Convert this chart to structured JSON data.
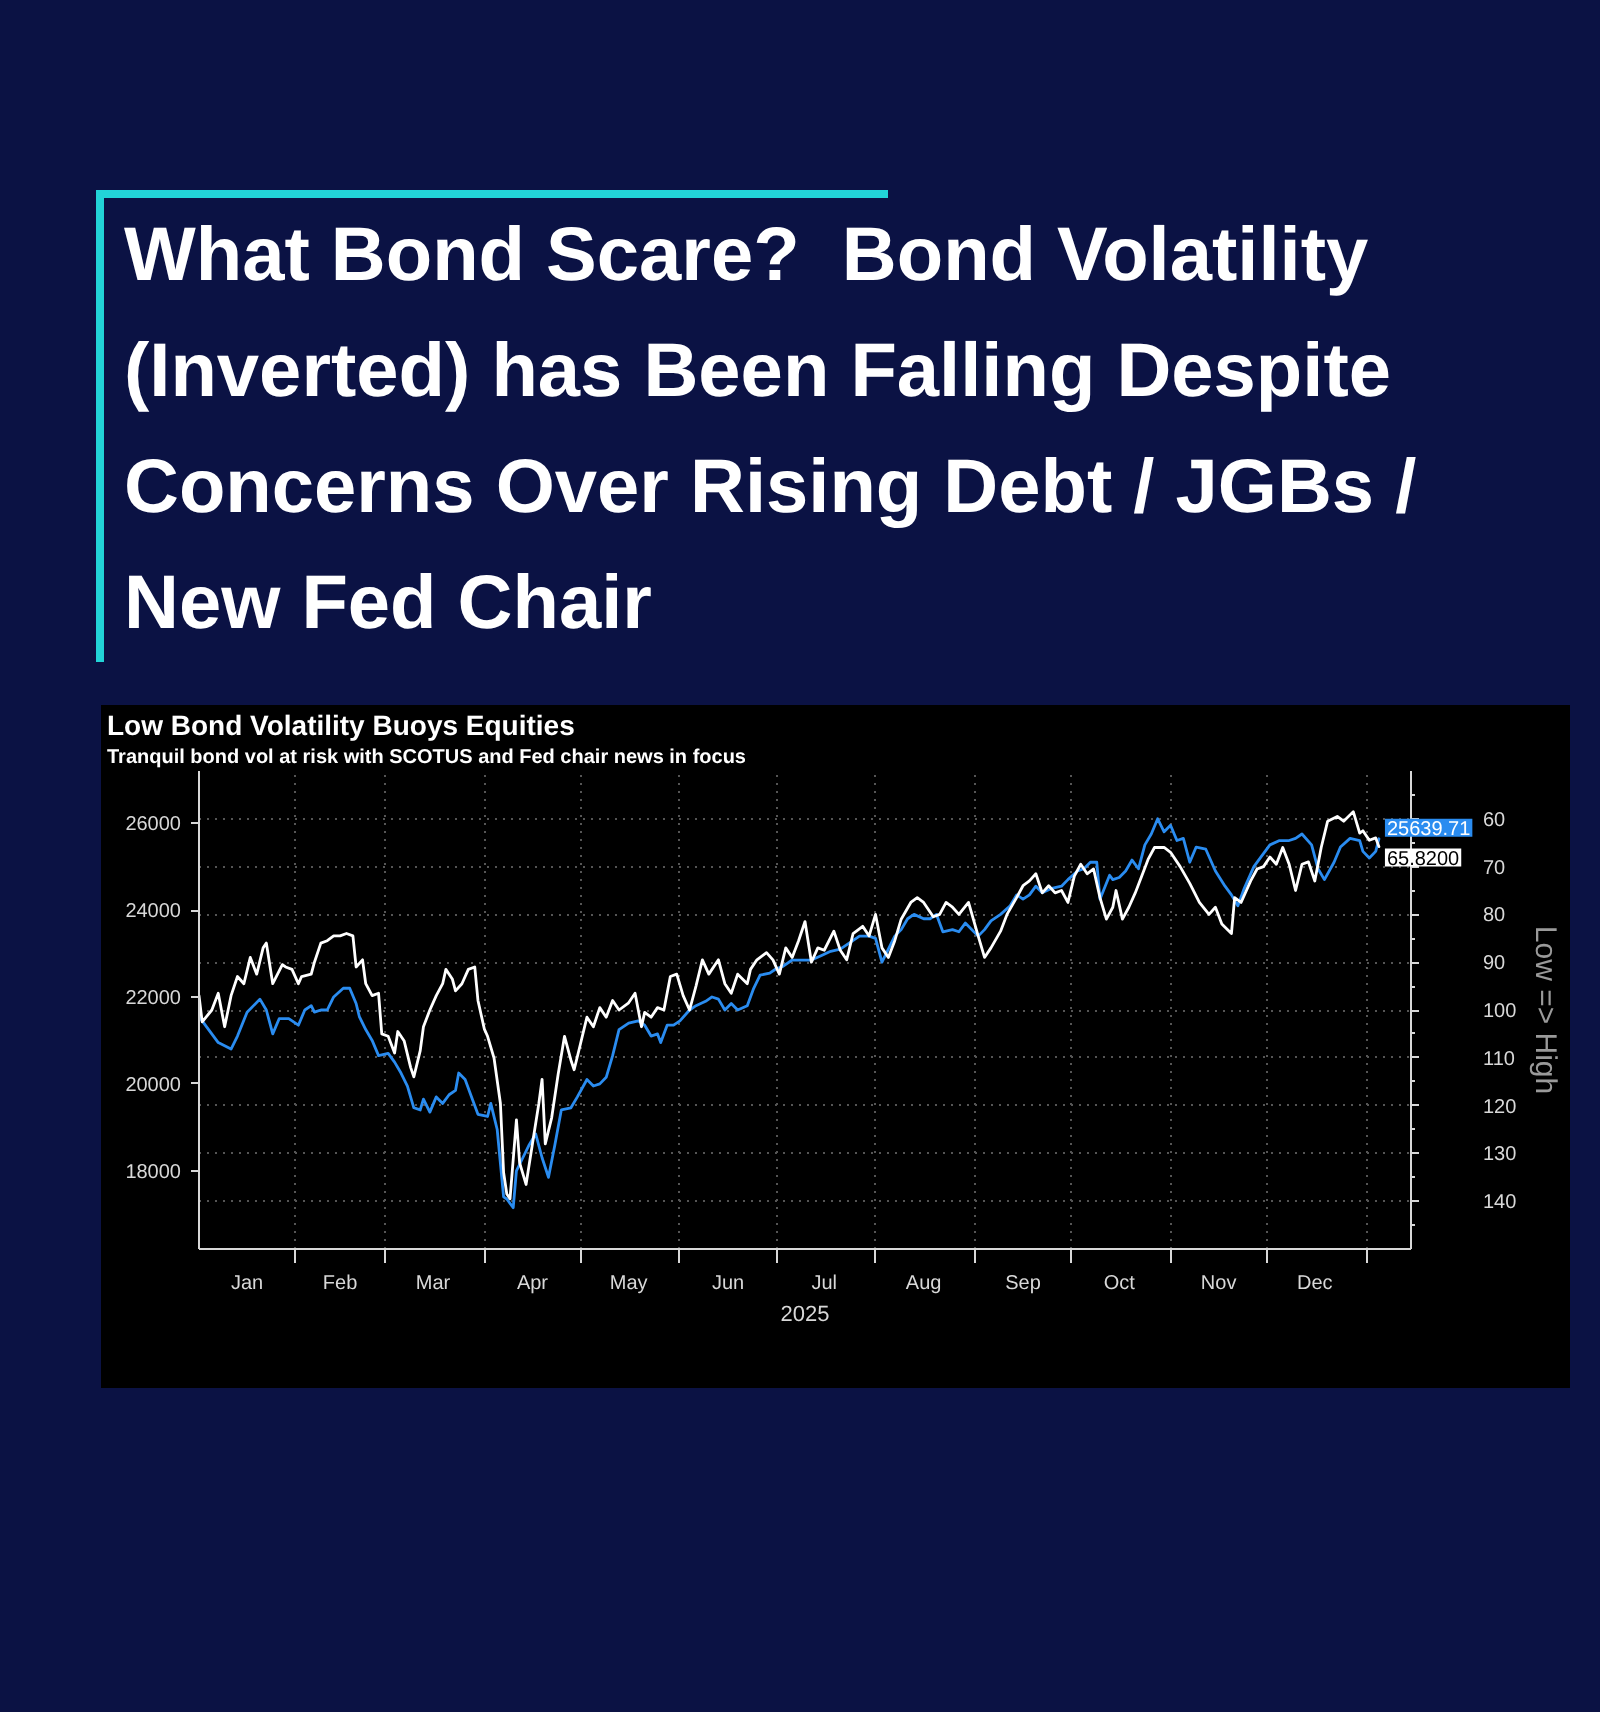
{
  "chart_data": {
    "type": "line",
    "title": "What Bond Scare?  Bond Volatility (Inverted) has Been Falling Despite Concerns Over Rising Debt / JGBs / New Fed Chair",
    "subtitle": "Low Bond Volatility Buoys Equities",
    "annotations": [
      "Tranquil bond vol at risk with SCOTUS and Fed chair news in focus"
    ],
    "xlabel": "2025",
    "y2label": "Low => High",
    "xlim": [
      "2025-01-02",
      "2026-01-15"
    ],
    "ylim": [
      16200,
      27200
    ],
    "y2lim": [
      150,
      50
    ],
    "xticks": [
      {
        "value": "2025-01-17",
        "label": "Jan"
      },
      {
        "value": "2025-02-01",
        "label": null
      },
      {
        "value": "2025-02-15",
        "label": "Feb"
      },
      {
        "value": "2025-03-01",
        "label": null
      },
      {
        "value": "2025-03-16",
        "label": "Mar"
      },
      {
        "value": "2025-04-01",
        "label": null
      },
      {
        "value": "2025-04-16",
        "label": "Apr"
      },
      {
        "value": "2025-05-01",
        "label": null
      },
      {
        "value": "2025-05-16",
        "label": "May"
      },
      {
        "value": "2025-06-01",
        "label": null
      },
      {
        "value": "2025-06-16",
        "label": "Jun"
      },
      {
        "value": "2025-07-01",
        "label": null
      },
      {
        "value": "2025-07-16",
        "label": "Jul"
      },
      {
        "value": "2025-08-01",
        "label": null
      },
      {
        "value": "2025-08-16",
        "label": "Aug"
      },
      {
        "value": "2025-09-01",
        "label": null
      },
      {
        "value": "2025-09-16",
        "label": "Sep"
      },
      {
        "value": "2025-10-01",
        "label": null
      },
      {
        "value": "2025-10-16",
        "label": "Oct"
      },
      {
        "value": "2025-11-01",
        "label": null
      },
      {
        "value": "2025-11-16",
        "label": "Nov"
      },
      {
        "value": "2025-12-01",
        "label": null
      },
      {
        "value": "2025-12-16",
        "label": "Dec"
      },
      {
        "value": "2026-01-01",
        "label": null
      }
    ],
    "yticks": [
      18000,
      20000,
      22000,
      24000,
      26000
    ],
    "y2ticks": [
      {
        "value": 55,
        "label": null
      },
      60,
      {
        "value": 65,
        "label": null
      },
      70,
      {
        "value": 75,
        "label": null
      },
      80,
      {
        "value": 85,
        "label": null
      },
      90,
      {
        "value": 95,
        "label": null
      },
      100,
      {
        "value": 105,
        "label": null
      },
      110,
      {
        "value": 115,
        "label": null
      },
      120,
      {
        "value": 125,
        "label": null
      },
      130,
      {
        "value": 135,
        "label": null
      },
      140,
      {
        "value": 145,
        "label": null
      }
    ],
    "grid": true,
    "series": [
      {
        "color": "#2a8cf0",
        "x": [
          "2025-01-02",
          "2025-01-05",
          "2025-01-08",
          "2025-01-12",
          "2025-01-14",
          "2025-01-17",
          "2025-01-21",
          "2025-01-23",
          "2025-01-25",
          "2025-01-27",
          "2025-01-30",
          "2025-02-02",
          "2025-02-04",
          "2025-02-06",
          "2025-02-07",
          "2025-02-09",
          "2025-02-11",
          "2025-02-13",
          "2025-02-16",
          "2025-02-18",
          "2025-02-20",
          "2025-02-21",
          "2025-02-23",
          "2025-02-25",
          "2025-02-27",
          "2025-03-02",
          "2025-03-04",
          "2025-03-06",
          "2025-03-08",
          "2025-03-10",
          "2025-03-12",
          "2025-03-13",
          "2025-03-15",
          "2025-03-17",
          "2025-03-19",
          "2025-03-21",
          "2025-03-23",
          "2025-03-24",
          "2025-03-26",
          "2025-03-28",
          "2025-03-30",
          "2025-04-02",
          "2025-04-03",
          "2025-04-05",
          "2025-04-07",
          "2025-04-08",
          "2025-04-10",
          "2025-04-11",
          "2025-04-13",
          "2025-04-15",
          "2025-04-17",
          "2025-04-19",
          "2025-04-21",
          "2025-04-23",
          "2025-04-25",
          "2025-04-28",
          "2025-04-30",
          "2025-05-03",
          "2025-05-05",
          "2025-05-07",
          "2025-05-09",
          "2025-05-11",
          "2025-05-13",
          "2025-05-16",
          "2025-05-19",
          "2025-05-21",
          "2025-05-23",
          "2025-05-25",
          "2025-05-26",
          "2025-05-28",
          "2025-05-30",
          "2025-06-01",
          "2025-06-04",
          "2025-06-06",
          "2025-06-09",
          "2025-06-11",
          "2025-06-13",
          "2025-06-15",
          "2025-06-17",
          "2025-06-19",
          "2025-06-22",
          "2025-06-24",
          "2025-06-26",
          "2025-06-29",
          "2025-07-01",
          "2025-07-03",
          "2025-07-06",
          "2025-07-09",
          "2025-07-12",
          "2025-07-15",
          "2025-07-18",
          "2025-07-21",
          "2025-07-24",
          "2025-07-27",
          "2025-07-30",
          "2025-08-01",
          "2025-08-03",
          "2025-08-05",
          "2025-08-07",
          "2025-08-09",
          "2025-08-11",
          "2025-08-13",
          "2025-08-16",
          "2025-08-18",
          "2025-08-20",
          "2025-08-22",
          "2025-08-25",
          "2025-08-27",
          "2025-08-29",
          "2025-09-02",
          "2025-09-04",
          "2025-09-06",
          "2025-09-09",
          "2025-09-12",
          "2025-09-14",
          "2025-09-16",
          "2025-09-18",
          "2025-09-20",
          "2025-09-22",
          "2025-09-25",
          "2025-09-28",
          "2025-09-30",
          "2025-10-03",
          "2025-10-05",
          "2025-10-07",
          "2025-10-09",
          "2025-10-10",
          "2025-10-13",
          "2025-10-14",
          "2025-10-16",
          "2025-10-18",
          "2025-10-20",
          "2025-10-22",
          "2025-10-24",
          "2025-10-26",
          "2025-10-28",
          "2025-10-30",
          "2025-11-01",
          "2025-11-03",
          "2025-11-05",
          "2025-11-07",
          "2025-11-09",
          "2025-11-12",
          "2025-11-15",
          "2025-11-18",
          "2025-11-20",
          "2025-11-22",
          "2025-11-24",
          "2025-11-27",
          "2025-11-29",
          "2025-12-02",
          "2025-12-05",
          "2025-12-08",
          "2025-12-10",
          "2025-12-12",
          "2025-12-15",
          "2025-12-17",
          "2025-12-19",
          "2025-12-22",
          "2025-12-24",
          "2025-12-27",
          "2025-12-30",
          "2025-12-31",
          "2026-01-02",
          "2026-01-04",
          "2026-01-05"
        ],
        "values": [
          21550,
          21250,
          20950,
          20800,
          21100,
          21650,
          21950,
          21700,
          21150,
          21500,
          21500,
          21350,
          21700,
          21800,
          21650,
          21700,
          21700,
          22000,
          22200,
          22200,
          21850,
          21550,
          21250,
          21000,
          20650,
          20700,
          20500,
          20250,
          19950,
          19450,
          19400,
          19650,
          19350,
          19700,
          19550,
          19750,
          19850,
          20250,
          20100,
          19700,
          19300,
          19250,
          19550,
          18950,
          17400,
          17350,
          17150,
          18000,
          18300,
          18600,
          18850,
          18300,
          17850,
          18600,
          19400,
          19450,
          19700,
          20100,
          19950,
          20000,
          20150,
          20650,
          21250,
          21400,
          21450,
          21350,
          21100,
          21150,
          20950,
          21350,
          21350,
          21450,
          21700,
          21800,
          21900,
          22000,
          21950,
          21700,
          21850,
          21700,
          21800,
          22200,
          22500,
          22550,
          22650,
          22700,
          22850,
          22850,
          22850,
          22950,
          23050,
          23100,
          23250,
          23400,
          23400,
          23350,
          22800,
          23100,
          23400,
          23550,
          23800,
          23900,
          23800,
          23800,
          23900,
          23500,
          23550,
          23500,
          23700,
          23400,
          23550,
          23750,
          23900,
          24100,
          24350,
          24250,
          24350,
          24550,
          24400,
          24500,
          24550,
          24700,
          24900,
          24950,
          25100,
          25100,
          24250,
          24800,
          24700,
          24750,
          24900,
          25150,
          24950,
          25500,
          25750,
          26100,
          25800,
          25950,
          25600,
          25650,
          25100,
          25450,
          25400,
          24900,
          24550,
          24350,
          24100,
          24500,
          25000,
          25200,
          25500,
          25600,
          25600,
          25650,
          25750,
          25500,
          24950,
          24700,
          25100,
          25450,
          25650,
          25600,
          25350,
          25200,
          25350,
          25639.71
        ],
        "value_labels": [
          null,
          null,
          null,
          null,
          null,
          null,
          null,
          null,
          null,
          null,
          null,
          null,
          null,
          null,
          null,
          null,
          null,
          null,
          null,
          null,
          null,
          null,
          null,
          null,
          null,
          null,
          null,
          null,
          null,
          null,
          null,
          null,
          null,
          null,
          null,
          null,
          null,
          null,
          null,
          null,
          null,
          null,
          null,
          null,
          null,
          null,
          null,
          null,
          null,
          null,
          null,
          null,
          null,
          null,
          null,
          null,
          null,
          null,
          null,
          null,
          null,
          null,
          null,
          null,
          null,
          null,
          null,
          null,
          null,
          null,
          null,
          null,
          null,
          null,
          null,
          null,
          null,
          null,
          null,
          null,
          null,
          null,
          null,
          null,
          null,
          null,
          null,
          null,
          null,
          null,
          null,
          null,
          null,
          null,
          null,
          null,
          null,
          null,
          null,
          null,
          null,
          null,
          null,
          null,
          null,
          null,
          null,
          null,
          null,
          null,
          null,
          null,
          null,
          null,
          null,
          null,
          null,
          null,
          null,
          null,
          null,
          null,
          null,
          null,
          null,
          null,
          null,
          null,
          null,
          null,
          null,
          null,
          null,
          null,
          null,
          null,
          null,
          null,
          null,
          null,
          null,
          null,
          null,
          null,
          null,
          null,
          null,
          null,
          null,
          null,
          null,
          null,
          null,
          null,
          null,
          null,
          null,
          null,
          null,
          null,
          null,
          null,
          null,
          null,
          null,
          "25639.71"
        ]
      },
      {
        "color": "#ffffff",
        "axis": "y2",
        "x": [
          "2025-01-02",
          "2025-01-03",
          "2025-01-06",
          "2025-01-08",
          "2025-01-10",
          "2025-01-12",
          "2025-01-14",
          "2025-01-16",
          "2025-01-18",
          "2025-01-20",
          "2025-01-22",
          "2025-01-23",
          "2025-01-25",
          "2025-01-28",
          "2025-01-29",
          "2025-01-31",
          "2025-02-02",
          "2025-02-03",
          "2025-02-06",
          "2025-02-07",
          "2025-02-09",
          "2025-02-11",
          "2025-02-13",
          "2025-02-15",
          "2025-02-17",
          "2025-02-19",
          "2025-02-20",
          "2025-02-22",
          "2025-02-23",
          "2025-02-25",
          "2025-02-27",
          "2025-02-28",
          "2025-03-02",
          "2025-03-04",
          "2025-03-05",
          "2025-03-07",
          "2025-03-09",
          "2025-03-10",
          "2025-03-12",
          "2025-03-13",
          "2025-03-15",
          "2025-03-17",
          "2025-03-19",
          "2025-03-20",
          "2025-03-22",
          "2025-03-23",
          "2025-03-25",
          "2025-03-27",
          "2025-03-29",
          "2025-03-30",
          "2025-04-01",
          "2025-04-02",
          "2025-04-04",
          "2025-04-06",
          "2025-04-07",
          "2025-04-08",
          "2025-04-09",
          "2025-04-11",
          "2025-04-12",
          "2025-04-14",
          "2025-04-16",
          "2025-04-18",
          "2025-04-19",
          "2025-04-20",
          "2025-04-22",
          "2025-04-24",
          "2025-04-26",
          "2025-04-28",
          "2025-04-29",
          "2025-05-01",
          "2025-05-03",
          "2025-05-05",
          "2025-05-07",
          "2025-05-09",
          "2025-05-11",
          "2025-05-13",
          "2025-05-16",
          "2025-05-18",
          "2025-05-20",
          "2025-05-21",
          "2025-05-23",
          "2025-05-25",
          "2025-05-27",
          "2025-05-29",
          "2025-05-31",
          "2025-06-02",
          "2025-06-04",
          "2025-06-06",
          "2025-06-08",
          "2025-06-10",
          "2025-06-13",
          "2025-06-15",
          "2025-06-17",
          "2025-06-19",
          "2025-06-22",
          "2025-06-23",
          "2025-06-25",
          "2025-06-28",
          "2025-06-30",
          "2025-07-02",
          "2025-07-04",
          "2025-07-06",
          "2025-07-08",
          "2025-07-10",
          "2025-07-12",
          "2025-07-14",
          "2025-07-16",
          "2025-07-19",
          "2025-07-21",
          "2025-07-23",
          "2025-07-25",
          "2025-07-28",
          "2025-07-30",
          "2025-08-01",
          "2025-08-03",
          "2025-08-05",
          "2025-08-07",
          "2025-08-09",
          "2025-08-12",
          "2025-08-14",
          "2025-08-16",
          "2025-08-19",
          "2025-08-21",
          "2025-08-23",
          "2025-08-25",
          "2025-08-27",
          "2025-08-30",
          "2025-09-02",
          "2025-09-04",
          "2025-09-06",
          "2025-09-09",
          "2025-09-11",
          "2025-09-14",
          "2025-09-16",
          "2025-09-18",
          "2025-09-20",
          "2025-09-22",
          "2025-09-24",
          "2025-09-26",
          "2025-09-28",
          "2025-09-30",
          "2025-10-02",
          "2025-10-04",
          "2025-10-06",
          "2025-10-08",
          "2025-10-10",
          "2025-10-12",
          "2025-10-14",
          "2025-10-15",
          "2025-10-17",
          "2025-10-19",
          "2025-10-21",
          "2025-10-23",
          "2025-10-25",
          "2025-10-27",
          "2025-10-30",
          "2025-11-01",
          "2025-11-04",
          "2025-11-07",
          "2025-11-10",
          "2025-11-13",
          "2025-11-15",
          "2025-11-17",
          "2025-11-20",
          "2025-11-21",
          "2025-11-23",
          "2025-11-26",
          "2025-11-28",
          "2025-11-30",
          "2025-12-02",
          "2025-12-04",
          "2025-12-06",
          "2025-12-08",
          "2025-12-10",
          "2025-12-12",
          "2025-12-14",
          "2025-12-16",
          "2025-12-18",
          "2025-12-20",
          "2025-12-23",
          "2025-12-25",
          "2025-12-28",
          "2025-12-30",
          "2025-12-31",
          "2026-01-02",
          "2026-01-04",
          "2026-01-05"
        ],
        "values": [
          97,
          102.5,
          100,
          96.5,
          103.5,
          97,
          93,
          94.5,
          89,
          92.5,
          87,
          86,
          94.5,
          90.5,
          91,
          91.5,
          94.5,
          93,
          92.5,
          90,
          86,
          85.5,
          84.5,
          84.5,
          84,
          84.5,
          91,
          89.5,
          94.5,
          97,
          96.5,
          105,
          105.5,
          109,
          104.5,
          106.5,
          112,
          114,
          108.5,
          103.5,
          100,
          97,
          94.5,
          91.5,
          93.5,
          96,
          94.5,
          91.5,
          91,
          98,
          104,
          105.5,
          110,
          119.5,
          134,
          138.5,
          139.5,
          123,
          132,
          136.5,
          128,
          119.5,
          114.5,
          128,
          122.5,
          113.5,
          105.5,
          110.5,
          112.5,
          107,
          101.5,
          103.5,
          99.5,
          101.5,
          98,
          100,
          98.5,
          96.5,
          103.5,
          100.5,
          101.5,
          99.5,
          100,
          93,
          92.5,
          97,
          100,
          95,
          89.5,
          92.5,
          89.5,
          94.5,
          96.5,
          92.5,
          94.5,
          91.5,
          89.5,
          88,
          89.5,
          92.5,
          87,
          89,
          85.5,
          81.5,
          90,
          87,
          87.5,
          83.5,
          87.5,
          89.5,
          84,
          82.5,
          84.5,
          80,
          87,
          89,
          85.5,
          81,
          77.5,
          76.5,
          77.5,
          80.5,
          80,
          77.5,
          78.5,
          80,
          77.5,
          84.5,
          89,
          87,
          83.5,
          80,
          76.5,
          74,
          73,
          71.5,
          75.5,
          74,
          75.5,
          75,
          77.5,
          72,
          69.5,
          71.5,
          70.5,
          76.5,
          81,
          78.5,
          75,
          81,
          78.5,
          75.5,
          72,
          68.5,
          66,
          66,
          67,
          70,
          73.5,
          77.5,
          80,
          78.5,
          82,
          84,
          76.5,
          77.5,
          73,
          70.5,
          70,
          68,
          69.5,
          66,
          69.5,
          75,
          69.5,
          69,
          73,
          66,
          60.5,
          59.5,
          60.5,
          58.5,
          63,
          62.5,
          64.5,
          64,
          65.82
        ],
        "value_labels": [
          null,
          null,
          null,
          null,
          null,
          null,
          null,
          null,
          null,
          null,
          null,
          null,
          null,
          null,
          null,
          null,
          null,
          null,
          null,
          null,
          null,
          null,
          null,
          null,
          null,
          null,
          null,
          null,
          null,
          null,
          null,
          null,
          null,
          null,
          null,
          null,
          null,
          null,
          null,
          null,
          null,
          null,
          null,
          null,
          null,
          null,
          null,
          null,
          null,
          null,
          null,
          null,
          null,
          null,
          null,
          null,
          null,
          null,
          null,
          null,
          null,
          null,
          null,
          null,
          null,
          null,
          null,
          null,
          null,
          null,
          null,
          null,
          null,
          null,
          null,
          null,
          null,
          null,
          null,
          null,
          null,
          null,
          null,
          null,
          null,
          null,
          null,
          null,
          null,
          null,
          null,
          null,
          null,
          null,
          null,
          null,
          null,
          null,
          null,
          null,
          null,
          null,
          null,
          null,
          null,
          null,
          null,
          null,
          null,
          null,
          null,
          null,
          null,
          null,
          null,
          null,
          null,
          null,
          null,
          null,
          null,
          null,
          null,
          null,
          null,
          null,
          null,
          null,
          null,
          null,
          null,
          null,
          null,
          null,
          null,
          null,
          null,
          null,
          null,
          null,
          null,
          null,
          null,
          null,
          null,
          null,
          null,
          null,
          null,
          null,
          null,
          null,
          null,
          null,
          null,
          null,
          null,
          null,
          null,
          null,
          null,
          null,
          null,
          null,
          null,
          null,
          null,
          null,
          null,
          null,
          null,
          null,
          null,
          null,
          null,
          null,
          null,
          null,
          null,
          null,
          null,
          null,
          null,
          null,
          null,
          null,
          "65.8200"
        ]
      }
    ]
  }
}
